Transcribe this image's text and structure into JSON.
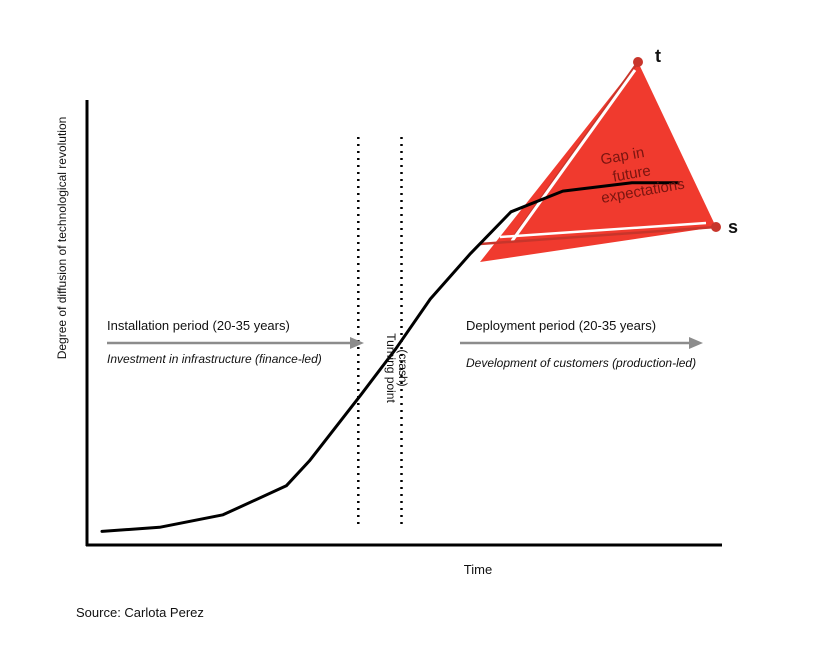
{
  "chart_data": {
    "type": "line",
    "xlabel": "Time",
    "ylabel": "Degree of diffusion of technological revolution",
    "source": "Source: Carlota Perez",
    "x_range": [
      0,
      100
    ],
    "y_range": [
      0,
      100
    ],
    "series": [
      {
        "x": [
          0,
          10,
          21,
          32,
          36,
          45,
          51,
          57,
          64,
          71,
          80,
          92,
          100
        ],
        "y": [
          4,
          5,
          8,
          15,
          21,
          37,
          48,
          60,
          71,
          81,
          86,
          88,
          88
        ]
      }
    ],
    "turning_point": {
      "label_line1": "Turning point",
      "label_line2": "(crash)",
      "x_left": 44.5,
      "x_right": 52
    },
    "installation": {
      "title": "Installation period (20-35 years)",
      "subtitle": "Investment in infrastructure (finance-led)"
    },
    "deployment": {
      "title": "Deployment period (20-35 years)",
      "subtitle": "Development of customers (production-led)"
    },
    "gap": {
      "line1": "Gap in",
      "line2": "future",
      "line3": "expectations",
      "upper_label": "t",
      "lower_label": "s",
      "color": "#f03a2e",
      "line_color": "#c8352b"
    }
  }
}
